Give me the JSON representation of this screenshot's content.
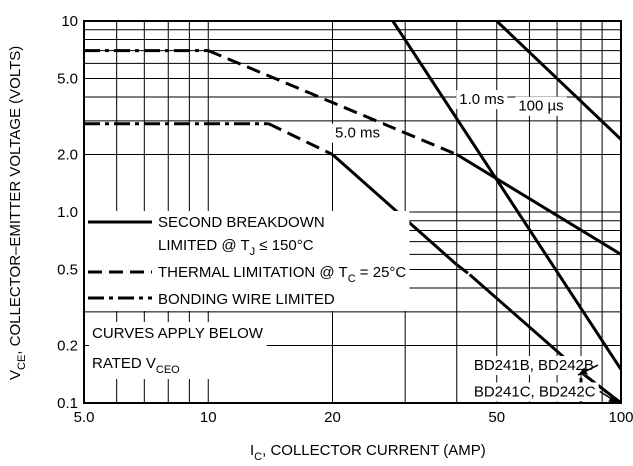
{
  "chart_data": {
    "type": "line",
    "xlabel": {
      "main": "I",
      "sub": "C",
      "rest": ", COLLECTOR CURRENT (AMP)"
    },
    "ylabel": {
      "main": "V",
      "sub": "CE",
      "rest": ", COLLECTOR–EMITTER VOLTAGE (VOLTS)"
    },
    "x_scale": "log",
    "y_scale": "log",
    "xlim": [
      5,
      100
    ],
    "ylim": [
      0.1,
      10
    ],
    "x_ticks": [
      {
        "value": 5,
        "label": "5.0"
      },
      {
        "value": 10,
        "label": "10"
      },
      {
        "value": 20,
        "label": "20"
      },
      {
        "value": 50,
        "label": "50"
      },
      {
        "value": 100,
        "label": "100"
      }
    ],
    "y_ticks": [
      {
        "value": 0.1,
        "label": "0.1"
      },
      {
        "value": 0.2,
        "label": "0.2"
      },
      {
        "value": 0.5,
        "label": "0.5"
      },
      {
        "value": 1,
        "label": "1.0"
      },
      {
        "value": 2,
        "label": "2.0"
      },
      {
        "value": 5,
        "label": "5.0"
      },
      {
        "value": 10,
        "label": "10"
      }
    ],
    "grid": true,
    "series": [
      {
        "style": "dashdot",
        "points": [
          [
            5,
            7
          ],
          [
            10,
            7
          ]
        ]
      },
      {
        "style": "dashed",
        "points": [
          [
            10,
            7
          ],
          [
            40,
            2
          ]
        ]
      },
      {
        "style": "solid",
        "points": [
          [
            40,
            2
          ],
          [
            100,
            0.6
          ]
        ]
      },
      {
        "style": "dashdot",
        "points": [
          [
            5,
            2.9
          ],
          [
            14,
            2.9
          ]
        ]
      },
      {
        "style": "dashed",
        "points": [
          [
            14,
            2.9
          ],
          [
            20,
            2
          ]
        ]
      },
      {
        "style": "solid",
        "points": [
          [
            20,
            2
          ],
          [
            40,
            0.53
          ]
        ]
      },
      {
        "style": "dashed",
        "points": [
          [
            40,
            0.53
          ],
          [
            43,
            0.47
          ]
        ]
      },
      {
        "style": "solid",
        "points": [
          [
            43,
            0.47
          ],
          [
            80,
            0.145
          ],
          [
            100,
            0.1
          ]
        ]
      },
      {
        "style": "solid",
        "points": [
          [
            28,
            10
          ],
          [
            100,
            0.15
          ]
        ]
      },
      {
        "style": "solid",
        "points": [
          [
            50,
            10
          ],
          [
            100,
            2.4
          ]
        ]
      },
      {
        "style": "solid",
        "points": [
          [
            80,
            0.135
          ],
          [
            80,
            0.1
          ]
        ]
      }
    ],
    "curve_labels": [
      {
        "text": "1.0 ms",
        "x": 46,
        "y": 3.9
      },
      {
        "text": "5.0 ms",
        "x": 23,
        "y": 2.6
      },
      {
        "text": "100 µs",
        "x": 64,
        "y": 3.6
      }
    ],
    "legend": {
      "placement": "bottom-left",
      "items": [
        {
          "style": "solid",
          "text": "SECOND BREAKDOWN",
          "line2_main": "LIMITED @ T",
          "line2_sub": "J",
          "line2_rest": " ≤ 150°C"
        },
        {
          "style": "dashed",
          "text_main": "THERMAL LIMITATION @ T",
          "text_sub": "C",
          "text_rest": " = 25°C"
        },
        {
          "style": "dashdot",
          "text": "BONDING WIRE LIMITED"
        }
      ]
    },
    "note": {
      "line1": "CURVES APPLY BELOW",
      "line2_main": "RATED V",
      "line2_sub": "CEO"
    },
    "device_labels": [
      {
        "text": "BD241B, BD242B",
        "x": 44,
        "y": 0.158
      },
      {
        "text": "BD241C, BD242C",
        "x": 44,
        "y": 0.115
      }
    ]
  }
}
